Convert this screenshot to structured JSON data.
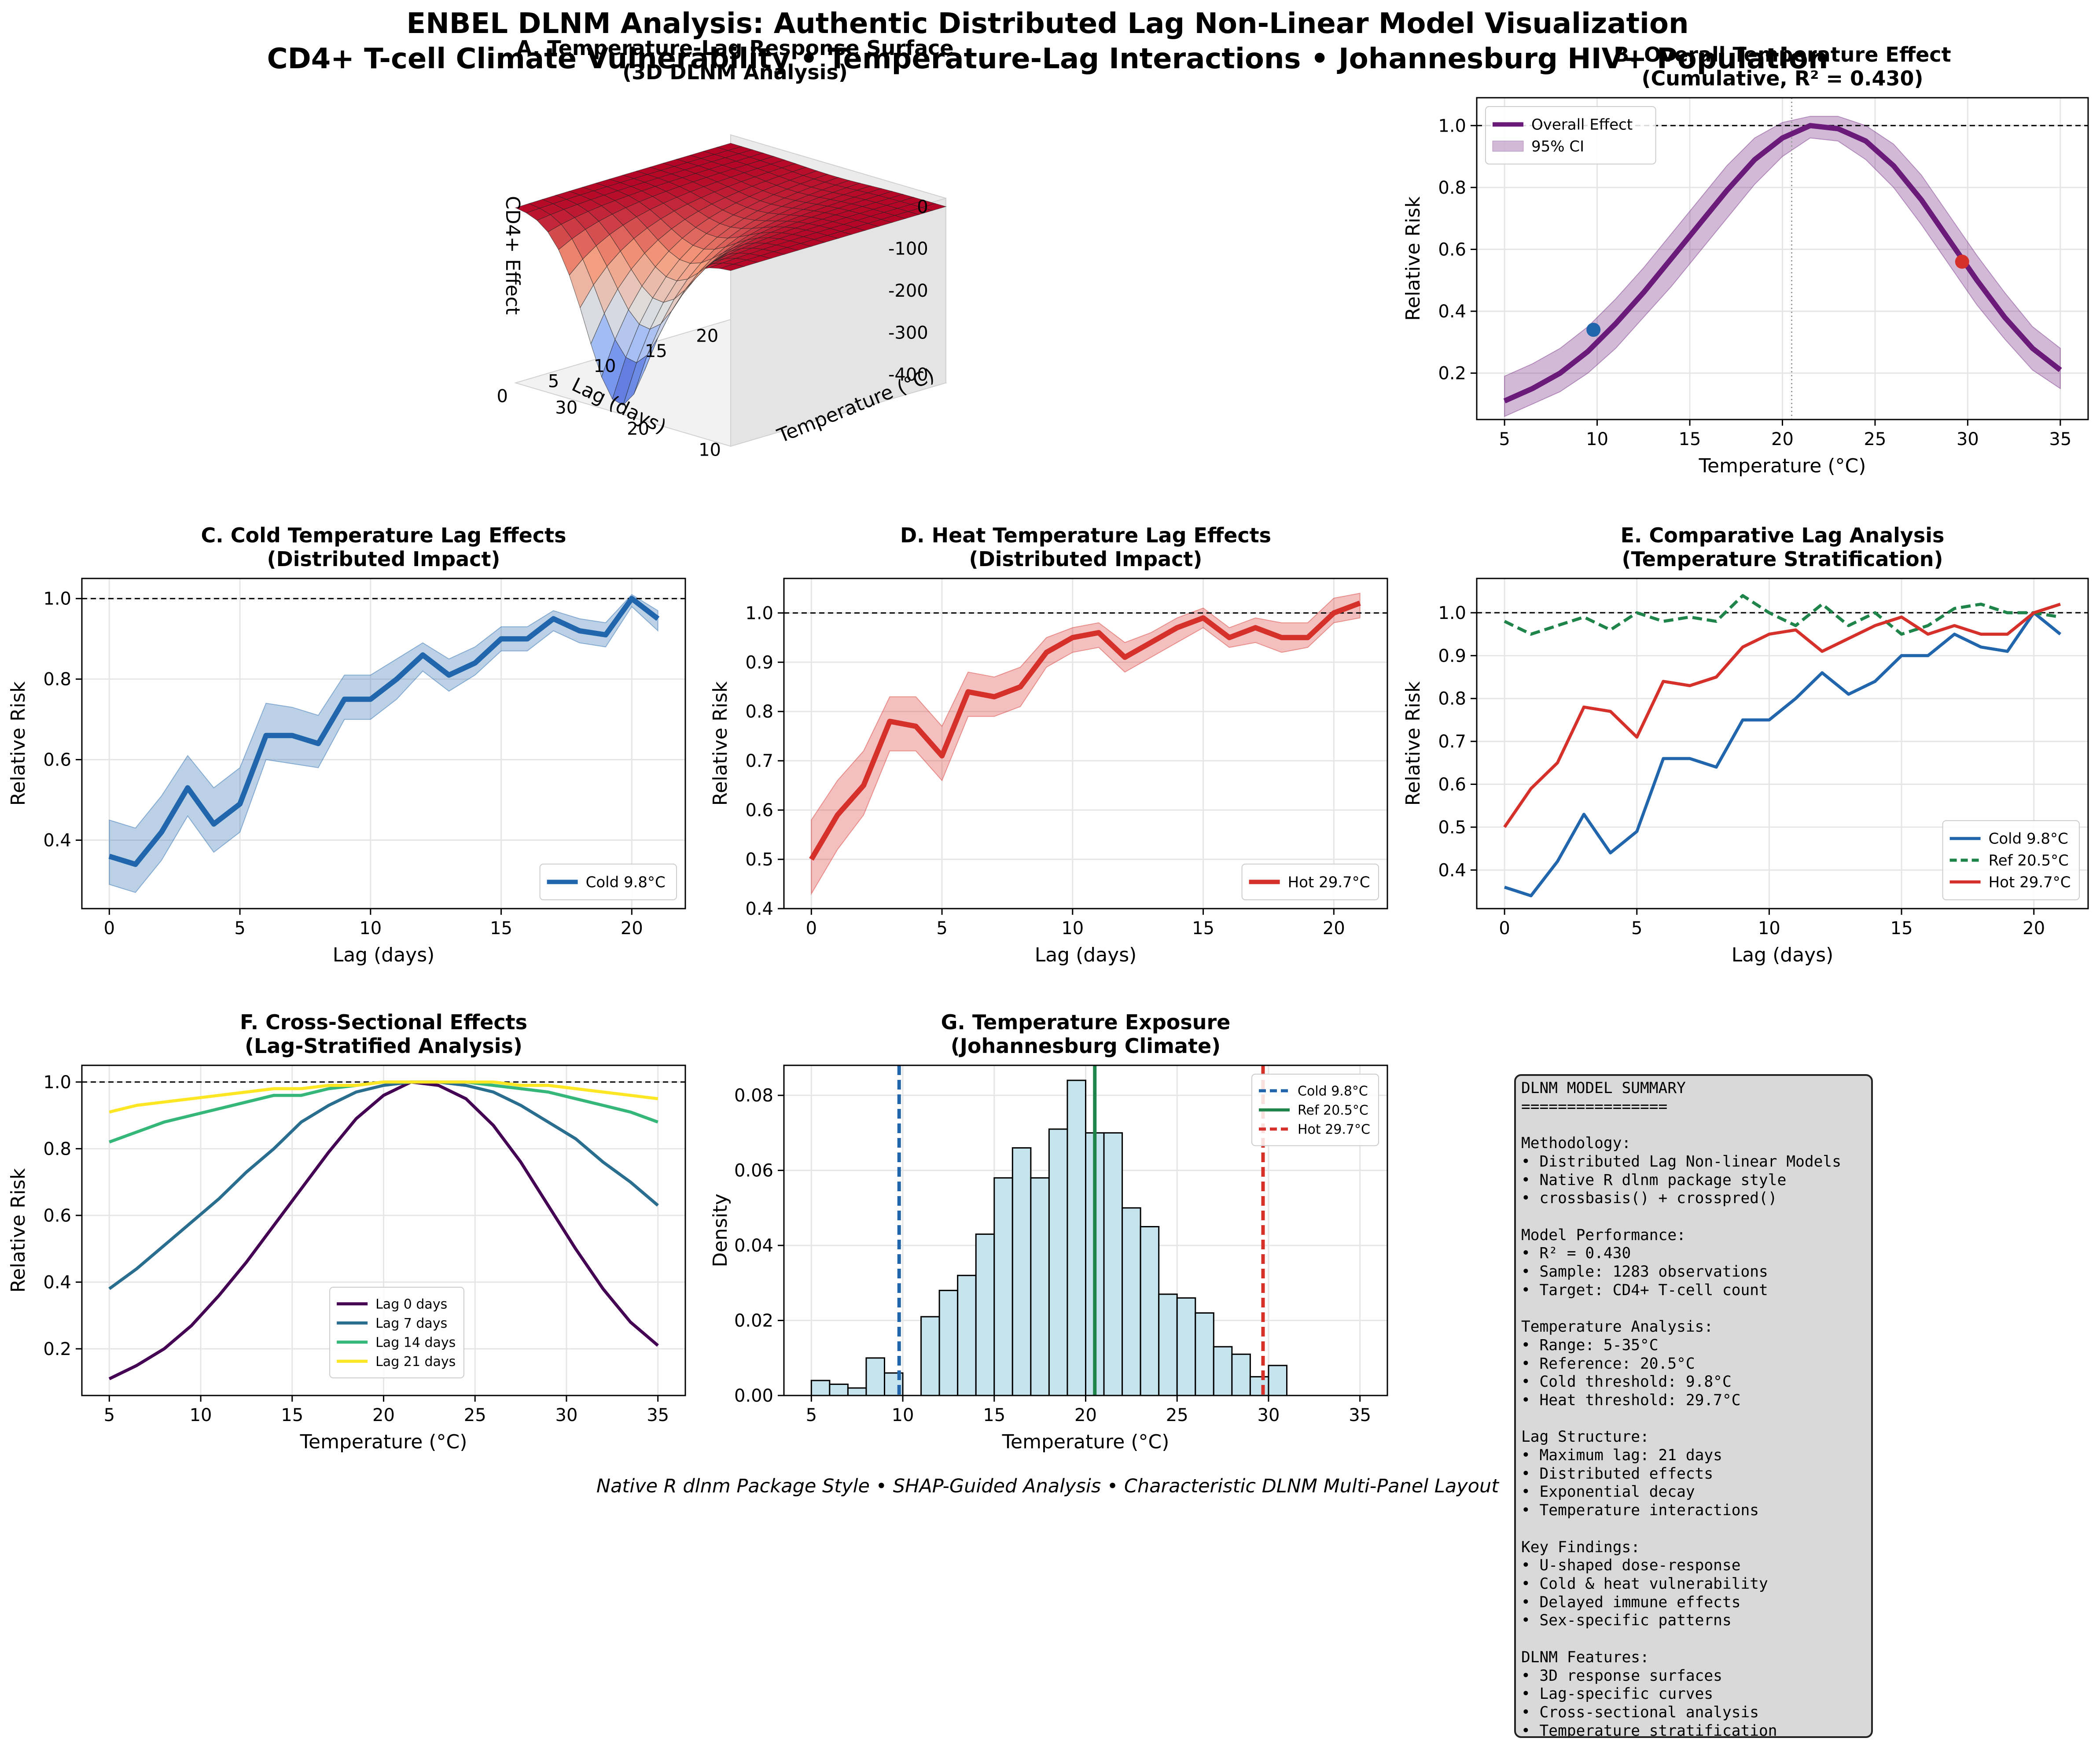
{
  "figure": {
    "title_line1": "ENBEL DLNM Analysis: Authentic Distributed Lag Non-Linear Model Visualization",
    "title_line2": "CD4+ T-cell Climate Vulnerability • Temperature-Lag Interactions • Johannesburg HIV+ Population",
    "footer": "Native R dlnm Package Style • SHAP-Guided Analysis • Characteristic DLNM Multi-Panel Layout"
  },
  "colors": {
    "cold": "#2166ac",
    "heat": "#d6302b",
    "reference": "#1e8449",
    "overall": "#6a1b7a",
    "hist_fill": "#c5e4ee",
    "grid": "#e6e6e6"
  },
  "summary": {
    "lines": [
      "DLNM MODEL SUMMARY",
      "================",
      "",
      "Methodology:",
      "• Distributed Lag Non-linear Models",
      "• Native R dlnm package style",
      "• crossbasis() + crosspred()",
      "",
      "Model Performance:",
      "• R² = 0.430",
      "• Sample: 1283 observations",
      "• Target: CD4+ T-cell count",
      "",
      "Temperature Analysis:",
      "• Range: 5-35°C",
      "• Reference: 20.5°C",
      "• Cold threshold: 9.8°C",
      "• Heat threshold: 29.7°C",
      "",
      "Lag Structure:",
      "• Maximum lag: 21 days",
      "• Distributed effects",
      "• Exponential decay",
      "• Temperature interactions",
      "",
      "Key Findings:",
      "• U-shaped dose-response",
      "• Cold & heat vulnerability",
      "• Delayed immune effects",
      "• Sex-specific patterns",
      "",
      "DLNM Features:",
      "• 3D response surfaces",
      "• Lag-specific curves",
      "• Cross-sectional analysis",
      "• Temperature stratification"
    ]
  },
  "chart_data": [
    {
      "id": "A",
      "type": "surface",
      "title_line1": "A. Temperature-Lag Response Surface",
      "title_line2": "(3D DLNM Analysis)",
      "xlabel": "Temperature (°C)",
      "ylabel": "Lag (days)",
      "zlabel": "CD4+ Effect",
      "xlim": [
        5,
        35
      ],
      "ylim": [
        0,
        21
      ],
      "zlim": [
        -420,
        20
      ],
      "xticks": [
        10,
        20,
        30
      ],
      "yticks": [
        0,
        5,
        10,
        15,
        20
      ],
      "zticks": [
        0,
        -100,
        -200,
        -300,
        -400
      ],
      "reference_temp": 20.5,
      "min_effect": -400
    },
    {
      "id": "B",
      "type": "line",
      "title_line1": "B. Overall Temperature Effect",
      "title_line2": "(Cumulative, R² = 0.430)",
      "xlabel": "Temperature (°C)",
      "ylabel": "Relative Risk",
      "xlim": [
        3.5,
        36.5
      ],
      "ylim": [
        0.05,
        1.09
      ],
      "xticks": [
        5,
        10,
        15,
        20,
        25,
        30,
        35
      ],
      "yticks": [
        0.2,
        0.4,
        0.6,
        0.8,
        1.0
      ],
      "reference_line": 1.0,
      "reference_vline": 20.5,
      "legend_position": "top-left",
      "series": [
        {
          "name": "Overall Effect",
          "x": [
            5,
            6.5,
            8,
            9.5,
            11,
            12.5,
            14,
            15.5,
            17,
            18.5,
            20,
            21.5,
            23,
            24.5,
            26,
            27.5,
            29,
            30.5,
            32,
            33.5,
            35
          ],
          "y": [
            0.11,
            0.15,
            0.2,
            0.27,
            0.36,
            0.46,
            0.57,
            0.68,
            0.79,
            0.89,
            0.96,
            1.0,
            0.99,
            0.95,
            0.87,
            0.76,
            0.63,
            0.5,
            0.38,
            0.28,
            0.21
          ],
          "lower": [
            0.06,
            0.1,
            0.14,
            0.2,
            0.28,
            0.38,
            0.48,
            0.59,
            0.7,
            0.81,
            0.9,
            0.96,
            0.95,
            0.89,
            0.8,
            0.68,
            0.55,
            0.42,
            0.31,
            0.21,
            0.15
          ],
          "upper": [
            0.19,
            0.23,
            0.28,
            0.35,
            0.44,
            0.54,
            0.65,
            0.76,
            0.87,
            0.96,
            1.01,
            1.03,
            1.03,
            1.0,
            0.94,
            0.84,
            0.71,
            0.58,
            0.46,
            0.35,
            0.28
          ]
        }
      ],
      "ci_label": "95% CI",
      "markers": [
        {
          "x": 9.8,
          "y": 0.34,
          "color": "#2166ac"
        },
        {
          "x": 29.7,
          "y": 0.56,
          "color": "#d6302b"
        }
      ]
    },
    {
      "id": "C",
      "type": "line",
      "title_line1": "C. Cold Temperature Lag Effects",
      "title_line2": "(Distributed Impact)",
      "xlabel": "Lag (days)",
      "ylabel": "Relative Risk",
      "xlim": [
        -1.05,
        22.05
      ],
      "ylim": [
        0.23,
        1.05
      ],
      "xticks": [
        0,
        5,
        10,
        15,
        20
      ],
      "yticks": [
        0.4,
        0.6,
        0.8,
        1.0
      ],
      "reference_line": 1.0,
      "legend_position": "bottom-right",
      "series": [
        {
          "name": "Cold 9.8°C",
          "x": [
            0,
            1,
            2,
            3,
            4,
            5,
            6,
            7,
            8,
            9,
            10,
            11,
            12,
            13,
            14,
            15,
            16,
            17,
            18,
            19,
            20,
            21
          ],
          "y": [
            0.36,
            0.34,
            0.42,
            0.53,
            0.44,
            0.49,
            0.66,
            0.66,
            0.64,
            0.75,
            0.75,
            0.8,
            0.86,
            0.81,
            0.84,
            0.9,
            0.9,
            0.95,
            0.92,
            0.91,
            1.0,
            0.95
          ],
          "lower": [
            0.29,
            0.27,
            0.35,
            0.46,
            0.37,
            0.42,
            0.6,
            0.59,
            0.58,
            0.7,
            0.7,
            0.75,
            0.82,
            0.77,
            0.81,
            0.87,
            0.87,
            0.92,
            0.89,
            0.88,
            0.98,
            0.92
          ],
          "upper": [
            0.45,
            0.43,
            0.51,
            0.61,
            0.53,
            0.58,
            0.74,
            0.73,
            0.71,
            0.81,
            0.81,
            0.85,
            0.89,
            0.85,
            0.88,
            0.93,
            0.93,
            0.97,
            0.95,
            0.94,
            1.01,
            0.97
          ]
        }
      ]
    },
    {
      "id": "D",
      "type": "line",
      "title_line1": "D. Heat Temperature Lag Effects",
      "title_line2": "(Distributed Impact)",
      "xlabel": "Lag (days)",
      "ylabel": "Relative Risk",
      "xlim": [
        -1.05,
        22.05
      ],
      "ylim": [
        0.4,
        1.07
      ],
      "xticks": [
        0,
        5,
        10,
        15,
        20
      ],
      "yticks": [
        0.4,
        0.5,
        0.6,
        0.7,
        0.8,
        0.9,
        1.0
      ],
      "reference_line": 1.0,
      "legend_position": "bottom-right",
      "series": [
        {
          "name": "Hot 29.7°C",
          "x": [
            0,
            1,
            2,
            3,
            4,
            5,
            6,
            7,
            8,
            9,
            10,
            11,
            12,
            13,
            14,
            15,
            16,
            17,
            18,
            19,
            20,
            21
          ],
          "y": [
            0.5,
            0.59,
            0.65,
            0.78,
            0.77,
            0.71,
            0.84,
            0.83,
            0.85,
            0.92,
            0.95,
            0.96,
            0.91,
            0.94,
            0.97,
            0.99,
            0.95,
            0.97,
            0.95,
            0.95,
            1.0,
            1.02
          ],
          "lower": [
            0.43,
            0.52,
            0.59,
            0.72,
            0.72,
            0.66,
            0.79,
            0.79,
            0.81,
            0.89,
            0.92,
            0.93,
            0.88,
            0.91,
            0.94,
            0.97,
            0.93,
            0.94,
            0.92,
            0.93,
            0.98,
            0.99
          ],
          "upper": [
            0.58,
            0.66,
            0.72,
            0.83,
            0.83,
            0.77,
            0.88,
            0.87,
            0.89,
            0.95,
            0.97,
            0.98,
            0.94,
            0.96,
            0.99,
            1.01,
            0.97,
            0.99,
            0.98,
            0.98,
            1.03,
            1.04
          ]
        }
      ]
    },
    {
      "id": "E",
      "type": "line",
      "title_line1": "E. Comparative Lag Analysis",
      "title_line2": "(Temperature Stratification)",
      "xlabel": "Lag (days)",
      "ylabel": "Relative Risk",
      "xlim": [
        -1.05,
        22.05
      ],
      "ylim": [
        0.31,
        1.08
      ],
      "xticks": [
        0,
        5,
        10,
        15,
        20
      ],
      "yticks": [
        0.4,
        0.5,
        0.6,
        0.7,
        0.8,
        0.9,
        1.0
      ],
      "reference_line": 1.0,
      "legend_position": "bottom-right",
      "series": [
        {
          "name": "Cold 9.8°C",
          "dashed": false,
          "color_key": "cold",
          "x": [
            0,
            1,
            2,
            3,
            4,
            5,
            6,
            7,
            8,
            9,
            10,
            11,
            12,
            13,
            14,
            15,
            16,
            17,
            18,
            19,
            20,
            21
          ],
          "y": [
            0.36,
            0.34,
            0.42,
            0.53,
            0.44,
            0.49,
            0.66,
            0.66,
            0.64,
            0.75,
            0.75,
            0.8,
            0.86,
            0.81,
            0.84,
            0.9,
            0.9,
            0.95,
            0.92,
            0.91,
            1.0,
            0.95
          ]
        },
        {
          "name": "Ref 20.5°C",
          "dashed": true,
          "color_key": "reference",
          "x": [
            0,
            1,
            2,
            3,
            4,
            5,
            6,
            7,
            8,
            9,
            10,
            11,
            12,
            13,
            14,
            15,
            16,
            17,
            18,
            19,
            20,
            21
          ],
          "y": [
            0.98,
            0.95,
            0.97,
            0.99,
            0.96,
            1.0,
            0.98,
            0.99,
            0.98,
            1.04,
            1.0,
            0.97,
            1.02,
            0.97,
            1.0,
            0.95,
            0.97,
            1.01,
            1.02,
            1.0,
            1.0,
            0.99
          ]
        },
        {
          "name": "Hot 29.7°C",
          "dashed": false,
          "color_key": "heat",
          "x": [
            0,
            1,
            2,
            3,
            4,
            5,
            6,
            7,
            8,
            9,
            10,
            11,
            12,
            13,
            14,
            15,
            16,
            17,
            18,
            19,
            20,
            21
          ],
          "y": [
            0.5,
            0.59,
            0.65,
            0.78,
            0.77,
            0.71,
            0.84,
            0.83,
            0.85,
            0.92,
            0.95,
            0.96,
            0.91,
            0.94,
            0.97,
            0.99,
            0.95,
            0.97,
            0.95,
            0.95,
            1.0,
            1.02
          ]
        }
      ]
    },
    {
      "id": "F",
      "type": "line",
      "title_line1": "F. Cross-Sectional Effects",
      "title_line2": "(Lag-Stratified Analysis)",
      "xlabel": "Temperature (°C)",
      "ylabel": "Relative Risk",
      "xlim": [
        3.5,
        36.5
      ],
      "ylim": [
        0.06,
        1.05
      ],
      "xticks": [
        5,
        10,
        15,
        20,
        25,
        30,
        35
      ],
      "yticks": [
        0.2,
        0.4,
        0.6,
        0.8,
        1.0
      ],
      "reference_line": 1.0,
      "legend_position": "lower-center",
      "series": [
        {
          "name": "Lag 0 days",
          "color": "#440154",
          "x": [
            5,
            6.5,
            8,
            9.5,
            11,
            12.5,
            14,
            15.5,
            17,
            18.5,
            20,
            21.5,
            23,
            24.5,
            26,
            27.5,
            29,
            30.5,
            32,
            33.5,
            35
          ],
          "y": [
            0.11,
            0.15,
            0.2,
            0.27,
            0.36,
            0.46,
            0.57,
            0.68,
            0.79,
            0.89,
            0.96,
            1.0,
            0.99,
            0.95,
            0.87,
            0.76,
            0.63,
            0.5,
            0.38,
            0.28,
            0.21
          ]
        },
        {
          "name": "Lag 7 days",
          "color": "#2a6e8f",
          "x": [
            5,
            6.5,
            8,
            9.5,
            11,
            12.5,
            14,
            15.5,
            17,
            18.5,
            20,
            21.5,
            23,
            24.5,
            26,
            27.5,
            29,
            30.5,
            32,
            33.5,
            35
          ],
          "y": [
            0.38,
            0.44,
            0.51,
            0.58,
            0.65,
            0.73,
            0.8,
            0.88,
            0.93,
            0.97,
            0.99,
            1.0,
            1.0,
            0.99,
            0.97,
            0.93,
            0.88,
            0.83,
            0.76,
            0.7,
            0.63
          ]
        },
        {
          "name": "Lag 14 days",
          "color": "#35b779",
          "x": [
            5,
            6.5,
            8,
            9.5,
            11,
            12.5,
            14,
            15.5,
            17,
            18.5,
            20,
            21.5,
            23,
            24.5,
            26,
            27.5,
            29,
            30.5,
            32,
            33.5,
            35
          ],
          "y": [
            0.82,
            0.85,
            0.88,
            0.9,
            0.92,
            0.94,
            0.96,
            0.96,
            0.98,
            0.99,
            1.0,
            1.0,
            1.0,
            1.0,
            0.99,
            0.98,
            0.97,
            0.95,
            0.93,
            0.91,
            0.88
          ]
        },
        {
          "name": "Lag 21 days",
          "color": "#fde725",
          "x": [
            5,
            6.5,
            8,
            9.5,
            11,
            12.5,
            14,
            15.5,
            17,
            18.5,
            20,
            21.5,
            23,
            24.5,
            26,
            27.5,
            29,
            30.5,
            32,
            33.5,
            35
          ],
          "y": [
            0.91,
            0.93,
            0.94,
            0.95,
            0.96,
            0.97,
            0.98,
            0.98,
            0.99,
            0.99,
            1.0,
            1.0,
            1.0,
            1.0,
            1.0,
            0.99,
            0.99,
            0.98,
            0.97,
            0.96,
            0.95
          ]
        }
      ]
    },
    {
      "id": "G",
      "type": "bar",
      "title_line1": "G. Temperature Exposure",
      "title_line2": "(Johannesburg Climate)",
      "xlabel": "Temperature (°C)",
      "ylabel": "Density",
      "xlim": [
        3.5,
        36.5
      ],
      "ylim": [
        0,
        0.088
      ],
      "xticks": [
        5,
        10,
        15,
        20,
        25,
        30,
        35
      ],
      "yticks": [
        0.0,
        0.02,
        0.04,
        0.06,
        0.08
      ],
      "ytick_labels": [
        "0.00",
        "0.02",
        "0.04",
        "0.06",
        "0.08"
      ],
      "legend_position": "top-right",
      "bin_width": 1.0,
      "bin_starts": [
        5,
        6,
        7,
        8,
        9,
        10,
        11,
        12,
        13,
        14,
        15,
        16,
        17,
        18,
        19,
        20,
        21,
        22,
        23,
        24,
        25,
        26,
        27,
        28,
        29,
        30,
        31,
        32,
        33,
        34
      ],
      "values": [
        0.004,
        0.003,
        0.002,
        0.01,
        0.006,
        0.0,
        0.021,
        0.028,
        0.032,
        0.043,
        0.058,
        0.066,
        0.058,
        0.071,
        0.084,
        0.07,
        0.07,
        0.05,
        0.045,
        0.027,
        0.026,
        0.022,
        0.013,
        0.011,
        0.005,
        0.008,
        0,
        0,
        0,
        0
      ],
      "vlines": [
        {
          "name": "Cold 9.8°C",
          "x": 9.8,
          "dashed": true,
          "color_key": "cold"
        },
        {
          "name": "Ref 20.5°C",
          "x": 20.5,
          "dashed": false,
          "color_key": "reference"
        },
        {
          "name": "Hot 29.7°C",
          "x": 29.7,
          "dashed": true,
          "color_key": "heat"
        }
      ]
    }
  ]
}
